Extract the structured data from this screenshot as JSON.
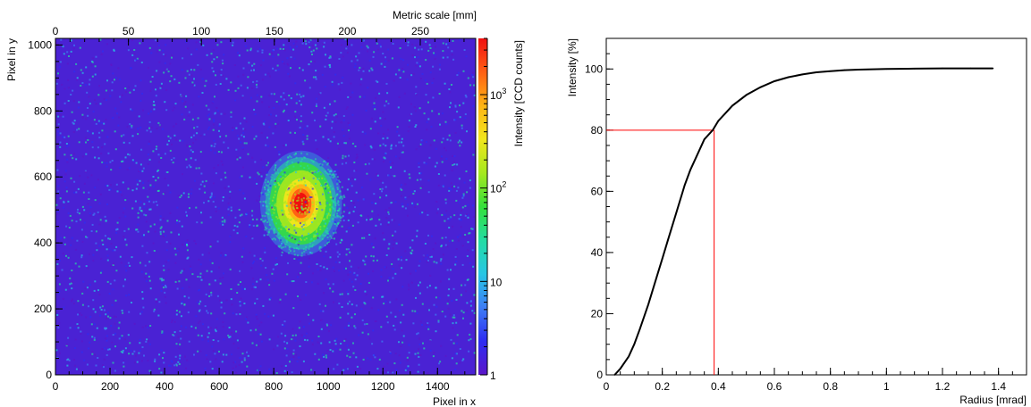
{
  "chart_data": [
    {
      "type": "heatmap",
      "xlabel": "Pixel in x",
      "ylabel": "Pixel in y",
      "x2label": "Metric scale [mm]",
      "zlabel": "Intensity [CCD counts]",
      "xlim": [
        0,
        1540
      ],
      "ylim": [
        0,
        1020
      ],
      "x2lim": [
        0,
        288
      ],
      "zlim": [
        1,
        4000
      ],
      "zscale": "log",
      "x_ticks": [
        0,
        200,
        400,
        600,
        800,
        1000,
        1200,
        1400
      ],
      "y_ticks": [
        0,
        200,
        400,
        600,
        800,
        1000
      ],
      "x2_ticks": [
        0,
        50,
        100,
        150,
        200,
        250
      ],
      "z_ticks": [
        {
          "value": 1,
          "label": "1"
        },
        {
          "value": 10,
          "label": "10"
        },
        {
          "value": 100,
          "label": "10",
          "sup": "2"
        },
        {
          "value": 1000,
          "label": "10",
          "sup": "3"
        }
      ],
      "spot": {
        "center_x": 900,
        "center_y": 520,
        "peak_counts": 3000,
        "background_counts": 5
      },
      "colormap": [
        "#5b16c8",
        "#2e2cf2",
        "#3d7df5",
        "#27c6e5",
        "#23dca3",
        "#35e03a",
        "#a6e81e",
        "#f1e61c",
        "#ffb515",
        "#ff6014",
        "#f01010"
      ]
    },
    {
      "type": "line",
      "xlabel": "Radius [mrad]",
      "ylabel": "Intensity [%]",
      "xlim": [
        0,
        1.5
      ],
      "ylim": [
        0,
        110
      ],
      "x_ticks": [
        0,
        0.2,
        0.4,
        0.6,
        0.8,
        1,
        1.2,
        1.4
      ],
      "x_tick_labels": [
        "0",
        "0.2",
        "0.4",
        "0.6",
        "0.8",
        "1",
        "1.2",
        "1.4"
      ],
      "y_ticks": [
        0,
        20,
        40,
        60,
        80,
        100
      ],
      "series": [
        {
          "color": "#000000",
          "x": [
            0.03,
            0.05,
            0.08,
            0.1,
            0.12,
            0.15,
            0.18,
            0.2,
            0.22,
            0.25,
            0.28,
            0.3,
            0.32,
            0.35,
            0.38,
            0.4,
            0.43,
            0.45,
            0.5,
            0.55,
            0.6,
            0.65,
            0.7,
            0.75,
            0.8,
            0.85,
            0.9,
            1.0,
            1.1,
            1.2,
            1.3,
            1.38
          ],
          "y": [
            0,
            2,
            6,
            10,
            15,
            23,
            32,
            38,
            44,
            53,
            62,
            67,
            71,
            77,
            80,
            83,
            86,
            88,
            91.5,
            94,
            96,
            97.3,
            98.2,
            98.9,
            99.3,
            99.6,
            99.8,
            100,
            100.1,
            100.2,
            100.2,
            100.2
          ]
        }
      ],
      "marker": {
        "x": 0.385,
        "y": 80,
        "color": "#ff0000"
      }
    }
  ]
}
